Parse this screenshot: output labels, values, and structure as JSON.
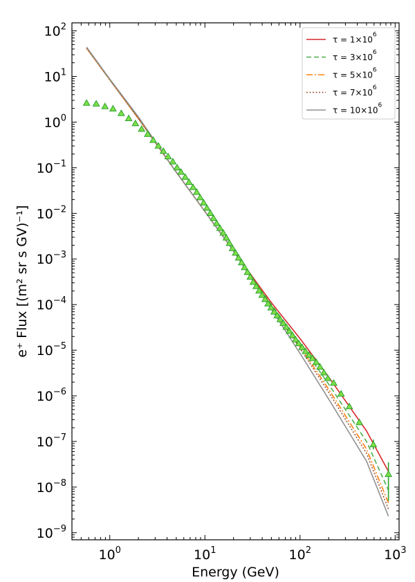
{
  "chart_data": {
    "type": "line",
    "xlabel": "Energy (GeV)",
    "ylabel": "e⁺ Flux [(m² sr s GV)⁻¹]",
    "xscale": "log",
    "yscale": "log",
    "xlim": [
      0.4,
      1100
    ],
    "ylim": [
      7e-10,
      150
    ],
    "legend_position": "top-right",
    "grid": false,
    "x_ticks": [
      {
        "base": "10",
        "exp": "0",
        "value": 1
      },
      {
        "base": "10",
        "exp": "1",
        "value": 10
      },
      {
        "base": "10",
        "exp": "2",
        "value": 100
      },
      {
        "base": "10",
        "exp": "3",
        "value": 1000
      }
    ],
    "y_ticks": [
      {
        "base": "10",
        "exp": "−9",
        "value": 1e-09
      },
      {
        "base": "10",
        "exp": "−8",
        "value": 1e-08
      },
      {
        "base": "10",
        "exp": "−7",
        "value": 1e-07
      },
      {
        "base": "10",
        "exp": "−6",
        "value": 1e-06
      },
      {
        "base": "10",
        "exp": "−5",
        "value": 1e-05
      },
      {
        "base": "10",
        "exp": "−4",
        "value": 0.0001
      },
      {
        "base": "10",
        "exp": "−3",
        "value": 0.001
      },
      {
        "base": "10",
        "exp": "−2",
        "value": 0.01
      },
      {
        "base": "10",
        "exp": "−1",
        "value": 0.1
      },
      {
        "base": "10",
        "exp": "0",
        "value": 1
      },
      {
        "base": "10",
        "exp": "1",
        "value": 10
      },
      {
        "base": "10",
        "exp": "2",
        "value": 100
      }
    ],
    "series": [
      {
        "name": "τ = 1×10⁶",
        "legend_prefix": "τ = 1×10",
        "legend_exp": "6",
        "color": "#d62728",
        "dash": "",
        "x": [
          0.57,
          1,
          2,
          5,
          10,
          20,
          50,
          100,
          200,
          500,
          850
        ],
        "y": [
          42,
          8.5,
          1.2,
          0.08,
          0.011,
          0.0015,
          0.00011,
          1.8e-05,
          2.6e-06,
          1.7e-07,
          2.2e-08
        ]
      },
      {
        "name": "τ = 3×10⁶",
        "legend_prefix": "τ = 3×10",
        "legend_exp": "6",
        "color": "#4aae4a",
        "dash": "7,4",
        "x": [
          0.57,
          1,
          2,
          5,
          10,
          20,
          50,
          100,
          200,
          500,
          850
        ],
        "y": [
          42,
          8.5,
          1.2,
          0.08,
          0.011,
          0.0015,
          0.0001,
          1.4e-05,
          1.8e-06,
          1e-07,
          8.5e-09
        ]
      },
      {
        "name": "τ = 5×10⁶",
        "legend_prefix": "τ = 5×10",
        "legend_exp": "6",
        "color": "#ff7f0e",
        "dash": "9,3,2,3",
        "x": [
          0.57,
          1,
          2,
          5,
          10,
          20,
          50,
          100,
          200,
          500,
          850
        ],
        "y": [
          42,
          8.5,
          1.2,
          0.08,
          0.011,
          0.0015,
          9.5e-05,
          1.2e-05,
          1.4e-06,
          6.8e-08,
          4.5e-09
        ]
      },
      {
        "name": "τ = 7×10⁶",
        "legend_prefix": "τ = 7×10",
        "legend_exp": "6",
        "color": "#a0522d",
        "dash": "2,2.5",
        "x": [
          0.57,
          1,
          2,
          5,
          10,
          20,
          50,
          100,
          200,
          500,
          850
        ],
        "y": [
          42,
          8.5,
          1.2,
          0.08,
          0.011,
          0.0015,
          9e-05,
          1.1e-05,
          1.2e-06,
          5.5e-08,
          3.3e-09
        ]
      },
      {
        "name": "τ = 10×10⁶",
        "legend_prefix": "τ = 10×10",
        "legend_exp": "6",
        "color": "#909090",
        "dash": "",
        "x": [
          0.57,
          1,
          2,
          5,
          10,
          20,
          50,
          100,
          200,
          500,
          850
        ],
        "y": [
          44,
          8.8,
          1.3,
          0.08,
          0.011,
          0.0015,
          8e-05,
          8.5e-06,
          8.5e-07,
          3.7e-08,
          2.3e-09
        ]
      }
    ],
    "data_points": {
      "marker": "triangle",
      "color": "#2ca02c",
      "fill": "#7ee04a",
      "x": [
        0.57,
        0.72,
        0.89,
        1.08,
        1.32,
        1.58,
        1.86,
        2.16,
        2.5,
        2.86,
        3.24,
        3.66,
        4.1,
        4.6,
        5.1,
        5.6,
        6.2,
        6.8,
        7.5,
        8.2,
        8.9,
        9.7,
        10.5,
        11.4,
        12.3,
        13.3,
        14.4,
        15.6,
        16.8,
        18.1,
        19.5,
        21,
        22.6,
        24.3,
        26.1,
        28,
        30,
        32.2,
        34.6,
        37.1,
        39.9,
        42.9,
        46.1,
        49.6,
        53.4,
        57.5,
        61.9,
        66.6,
        71.7,
        77.2,
        83.2,
        89.8,
        97,
        105,
        114,
        124,
        135,
        148,
        162,
        178,
        196,
        226,
        270,
        330,
        420,
        590,
        850
      ],
      "y": [
        2.6,
        2.5,
        2.2,
        1.95,
        1.55,
        1.2,
        0.93,
        0.7,
        0.54,
        0.4,
        0.3,
        0.23,
        0.175,
        0.135,
        0.1,
        0.08,
        0.062,
        0.048,
        0.037,
        0.029,
        0.022,
        0.017,
        0.013,
        0.01,
        0.0078,
        0.006,
        0.0047,
        0.0037,
        0.0029,
        0.0022,
        0.0017,
        0.00135,
        0.00105,
        0.00083,
        0.00065,
        0.00051,
        0.0004,
        0.00031,
        0.00025,
        0.0002,
        0.00016,
        0.00013,
        0.000104,
        8.5e-05,
        6.9e-05,
        5.7e-05,
        4.7e-05,
        3.9e-05,
        3.2e-05,
        2.6e-05,
        2.1e-05,
        1.7e-05,
        1.4e-05,
        1.15e-05,
        9.4e-06,
        7.8e-06,
        6.6e-06,
        5.4e-06,
        4.3e-06,
        3.2e-06,
        2.4e-06,
        1.9e-06,
        1.1e-06,
        5.8e-07,
        2.6e-07,
        8.5e-08,
        1.9e-08
      ],
      "y_err_low": [
        0,
        0,
        0,
        0,
        0,
        0,
        0,
        0,
        0,
        0,
        0,
        0,
        0,
        0,
        0,
        0,
        0,
        0,
        0,
        0,
        0,
        0,
        0,
        0,
        0,
        0,
        0,
        0,
        0,
        0,
        0,
        0,
        0,
        0,
        0,
        0,
        0,
        0,
        0,
        0,
        0,
        0,
        0,
        0,
        0,
        0,
        0,
        0,
        0,
        0,
        0,
        0,
        0,
        0,
        0,
        0,
        0,
        0,
        0,
        0,
        0,
        0,
        0,
        0,
        0,
        1.8e-08,
        1.4e-08
      ],
      "y_err_high": [
        0,
        0,
        0,
        0,
        0,
        0,
        0,
        0,
        0,
        0,
        0,
        0,
        0,
        0,
        0,
        0,
        0,
        0,
        0,
        0,
        0,
        0,
        0,
        0,
        0,
        0,
        0,
        0,
        0,
        0,
        0,
        0,
        0,
        0,
        0,
        0,
        0,
        0,
        0,
        0,
        0,
        0,
        0,
        0,
        0,
        0,
        0,
        0,
        0,
        0,
        0,
        0,
        0,
        0,
        0,
        0,
        0,
        0,
        0,
        0,
        0,
        0,
        0,
        0,
        0,
        2.5e-08,
        1.6e-08
      ]
    }
  }
}
